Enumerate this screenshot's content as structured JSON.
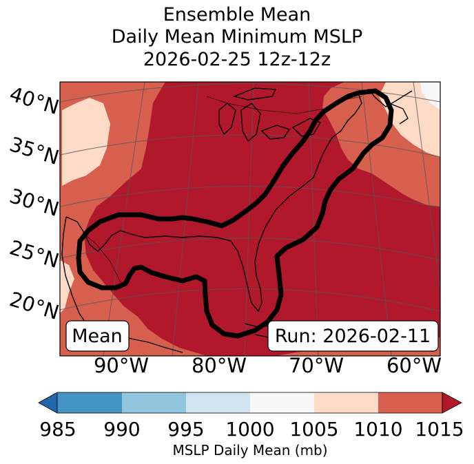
{
  "title": {
    "line1": "Ensemble Mean",
    "line2": "Daily Mean Minimum MSLP",
    "line3": "2026-02-25 12z-12z"
  },
  "map": {
    "lat_labels": [
      "40°N",
      "35°N",
      "30°N",
      "25°N",
      "20°N"
    ],
    "lon_labels": [
      "90°W",
      "80°W",
      "70°W",
      "60°W"
    ],
    "mean_box": "Mean",
    "run_box": "Run: 2026-02-11",
    "colors": {
      "c985": "#2166ac",
      "c990": "#4393c3",
      "c995": "#92c5de",
      "c1000": "#d1e5f0",
      "c1005": "#f7f7f7",
      "c1010": "#fddbc7",
      "c1015": "#d6604d",
      "over": "#b2182b",
      "contour": "#000000"
    }
  },
  "colorbar": {
    "ticks": [
      "985",
      "990",
      "995",
      "1000",
      "1005",
      "1010",
      "1015"
    ],
    "label": "MSLP Daily Mean (mb)"
  }
}
